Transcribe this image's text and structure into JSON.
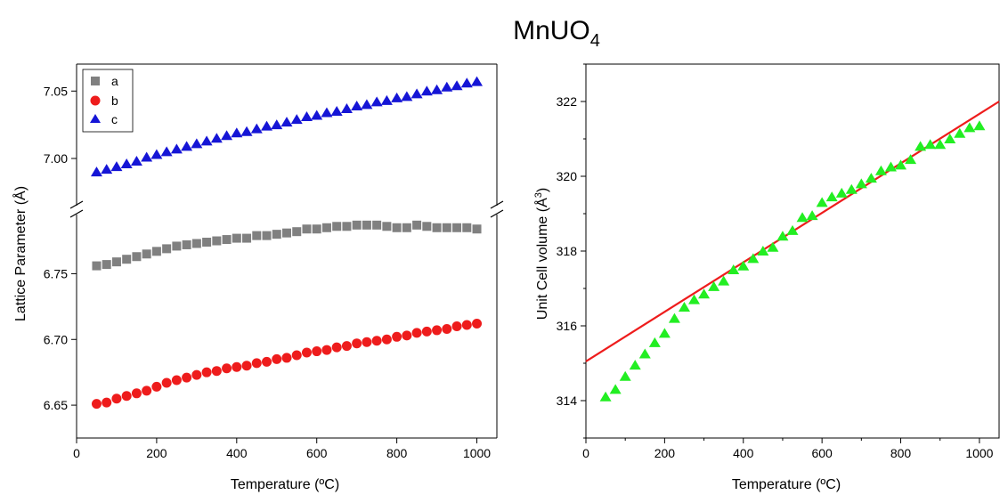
{
  "figure": {
    "title_main": "MnUO",
    "title_subscript": "4",
    "left_ylabel": "Lattice Parameter (Å)",
    "right_ylabel_prefix": "Unit Cell volume (Å",
    "right_ylabel_sup": "3",
    "right_ylabel_suffix": ")",
    "xlabel": "Temperature (ºC)"
  },
  "chart_data": [
    {
      "type": "scatter",
      "xlabel": "Temperature (ºC)",
      "ylabel": "Lattice Parameter (Å)",
      "xlim": [
        0,
        1050
      ],
      "ylim_lower": [
        6.625,
        6.795
      ],
      "ylim_upper": [
        6.965,
        7.07
      ],
      "axis_break": true,
      "grid": false,
      "legend_position": "top-left",
      "xticks": [
        0,
        200,
        400,
        600,
        800,
        1000
      ],
      "yticks_lower": [
        6.65,
        6.7,
        6.75
      ],
      "yticks_upper": [
        7.0,
        7.05
      ],
      "x": [
        50,
        75,
        100,
        125,
        150,
        175,
        200,
        225,
        250,
        275,
        300,
        325,
        350,
        375,
        400,
        425,
        450,
        475,
        500,
        525,
        550,
        575,
        600,
        625,
        650,
        675,
        700,
        725,
        750,
        775,
        800,
        825,
        850,
        875,
        900,
        925,
        950,
        975,
        1000
      ],
      "series": [
        {
          "name": "a",
          "marker": "square",
          "color": "#808080",
          "values": [
            6.756,
            6.757,
            6.759,
            6.761,
            6.763,
            6.765,
            6.767,
            6.769,
            6.771,
            6.772,
            6.773,
            6.774,
            6.775,
            6.776,
            6.777,
            6.777,
            6.779,
            6.779,
            6.78,
            6.781,
            6.782,
            6.784,
            6.784,
            6.785,
            6.786,
            6.786,
            6.787,
            6.787,
            6.787,
            6.786,
            6.785,
            6.785,
            6.787,
            6.786,
            6.785,
            6.785,
            6.785,
            6.785,
            6.784
          ]
        },
        {
          "name": "b",
          "marker": "circle",
          "color": "#ee1c1c",
          "values": [
            6.651,
            6.652,
            6.655,
            6.657,
            6.659,
            6.661,
            6.664,
            6.667,
            6.669,
            6.671,
            6.673,
            6.675,
            6.676,
            6.678,
            6.679,
            6.68,
            6.682,
            6.683,
            6.685,
            6.686,
            6.688,
            6.69,
            6.691,
            6.692,
            6.694,
            6.695,
            6.697,
            6.698,
            6.699,
            6.7,
            6.702,
            6.703,
            6.705,
            6.706,
            6.707,
            6.708,
            6.71,
            6.711,
            6.712
          ]
        },
        {
          "name": "c",
          "marker": "triangle",
          "color": "#1515d6",
          "values": [
            6.99,
            6.992,
            6.994,
            6.996,
            6.998,
            7.001,
            7.003,
            7.005,
            7.007,
            7.009,
            7.011,
            7.013,
            7.015,
            7.017,
            7.019,
            7.02,
            7.022,
            7.024,
            7.025,
            7.027,
            7.029,
            7.031,
            7.032,
            7.034,
            7.035,
            7.037,
            7.039,
            7.04,
            7.042,
            7.043,
            7.045,
            7.046,
            7.048,
            7.05,
            7.051,
            7.053,
            7.054,
            7.056,
            7.057
          ]
        }
      ]
    },
    {
      "type": "scatter",
      "xlabel": "Temperature (ºC)",
      "ylabel": "Unit Cell volume (Å3)",
      "xlim": [
        0,
        1050
      ],
      "ylim": [
        313,
        323
      ],
      "grid": false,
      "xticks": [
        0,
        200,
        400,
        600,
        800,
        1000
      ],
      "yticks": [
        314,
        316,
        318,
        320,
        322
      ],
      "x": [
        50,
        75,
        100,
        125,
        150,
        175,
        200,
        225,
        250,
        275,
        300,
        325,
        350,
        375,
        400,
        425,
        450,
        475,
        500,
        525,
        550,
        575,
        600,
        625,
        650,
        675,
        700,
        725,
        750,
        775,
        800,
        825,
        850,
        875,
        900,
        925,
        950,
        975,
        1000
      ],
      "series": [
        {
          "marker": "triangle",
          "color": "#22ee22",
          "values": [
            314.1,
            314.3,
            314.65,
            314.95,
            315.25,
            315.55,
            315.8,
            316.2,
            316.5,
            316.7,
            316.85,
            317.05,
            317.2,
            317.5,
            317.6,
            317.8,
            318.0,
            318.1,
            318.4,
            318.55,
            318.9,
            318.95,
            319.3,
            319.45,
            319.55,
            319.65,
            319.8,
            319.95,
            320.15,
            320.25,
            320.3,
            320.45,
            320.8,
            320.85,
            320.85,
            321.0,
            321.15,
            321.3,
            321.35
          ]
        }
      ],
      "fit_line": {
        "color": "#ee1c1c",
        "x": [
          0,
          1050
        ],
        "y": [
          315.05,
          322.0
        ]
      }
    }
  ]
}
